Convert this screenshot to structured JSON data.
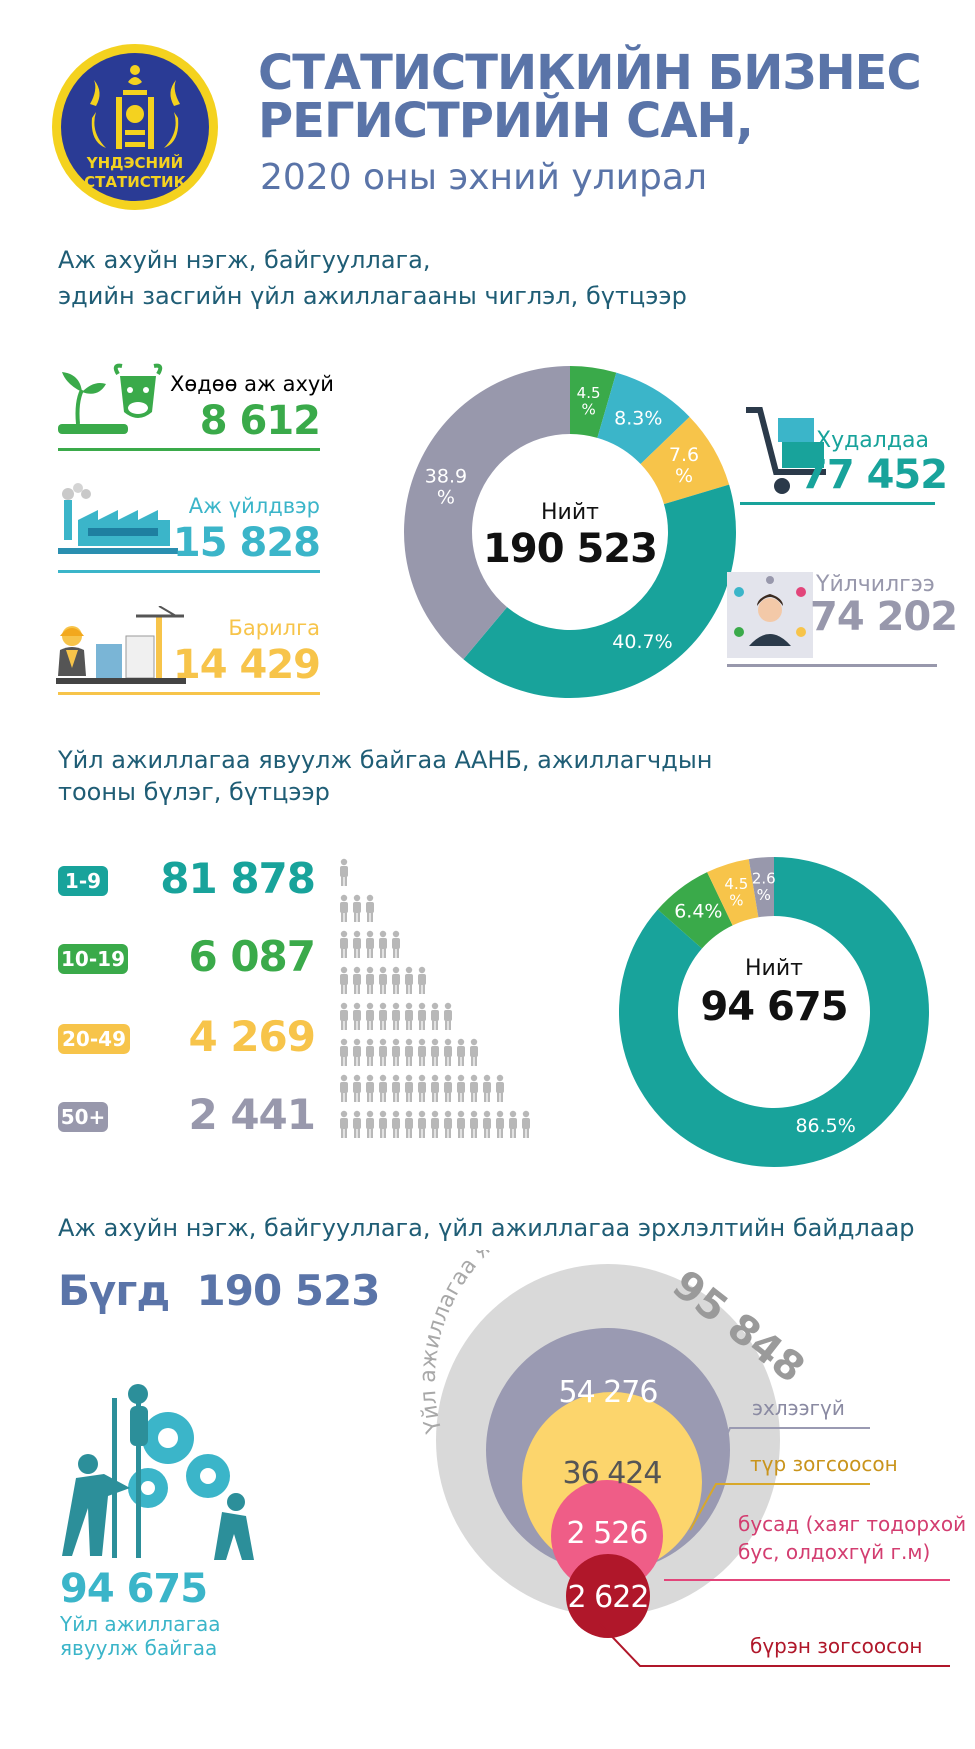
{
  "header": {
    "logo_text": "ҮНДЭСНИЙ СТАТИСТИК",
    "title_line1": "СТАТИСТИКИЙН БИЗНЕС",
    "title_line2": "РЕГИСТРИЙН САН,",
    "title_line3": "2020 оны эхний улирал"
  },
  "section1": {
    "heading_line1": "Аж ахуйн нэгж, байгууллага,",
    "heading_line2": "эдийн засгийн үйл ажиллагааны чиглэл, бүтцээр",
    "sectors": [
      {
        "label": "Хөдөө аж ахуй",
        "value": "8 612",
        "color": "#3aaa4a",
        "icon": "agriculture-icon"
      },
      {
        "label": "Аж үйлдвэр",
        "value": "15 828",
        "color": "#3bb5c9",
        "icon": "factory-icon"
      },
      {
        "label": "Барилга",
        "value": "14 429",
        "color": "#f7c44a",
        "icon": "construction-icon"
      },
      {
        "label": "Худалдаа",
        "value": "77 452",
        "color": "#18a39b",
        "icon": "trade-cart-icon"
      },
      {
        "label": "Үйлчилгээ",
        "value": "74 202",
        "color": "#9898ac",
        "icon": "service-operator-icon"
      }
    ],
    "donut_center_label": "Нийт",
    "donut_center_value": "190 523"
  },
  "section2": {
    "heading_line1": "Үйл ажиллагаа явуулж байгаа ААНБ, ажиллагчдын",
    "heading_line2": "тооны бүлэг, бүтцээр",
    "groups": [
      {
        "range": "1-9",
        "value": "81 878",
        "color": "#18a39b",
        "people": 1
      },
      {
        "range": "10-19",
        "value": "6 087",
        "color": "#3aaa4a",
        "people": 3
      },
      {
        "range": "20-49",
        "value": "4 269",
        "color": "#f7c44a",
        "people": 7
      },
      {
        "range": "50+",
        "value": "2 441",
        "color": "#9898ac",
        "people": 15
      }
    ],
    "donut_center_label": "Нийт",
    "donut_center_value": "94 675"
  },
  "section3": {
    "heading": "Аж ахуйн нэгж, байгууллага, үйл ажиллагаа эрхлэлтийн байдлаар",
    "total_label": "Бүгд",
    "total_value": "190 523",
    "active_value": "94 675",
    "active_label_line1": "Үйл ажиллагаа",
    "active_label_line2": "явуулж байгаа",
    "inactive_arc_label": "Үйл ажиллагаа явуулаагүй",
    "inactive_value": "95 848",
    "rings": [
      {
        "value": "54 276",
        "label": "эхлээгүй",
        "color": "#9a9ab2",
        "line": "#9a9ab2"
      },
      {
        "value": "36 424",
        "label": "түр зогсоосон",
        "color": "#fcd56c",
        "line": "#d8a82a"
      },
      {
        "value": "2 526",
        "label_line1": "бусад (хаяг тодорхой",
        "label_line2": "бус, олдохгүй г.м)",
        "color": "#ef5d87",
        "line": "#e2457a"
      },
      {
        "value": "2 622",
        "label": "бүрэн зогсоосон",
        "color": "#b0172a",
        "line": "#b0172a"
      }
    ]
  },
  "chart_data": [
    {
      "type": "pie",
      "title": "",
      "categories": [
        "Хөдөө аж ахуй",
        "Аж үйлдвэр",
        "Барилга",
        "Худалдаа",
        "Үйлчилгээ"
      ],
      "values": [
        4.5,
        8.3,
        7.6,
        40.7,
        38.9
      ],
      "labels": [
        "4.5 %",
        "8.3%",
        "7.6 %",
        "40.7%",
        "38.9 %"
      ],
      "colors": [
        "#3aaa4a",
        "#3bb5c9",
        "#f7c44a",
        "#18a39b",
        "#9898ac"
      ]
    },
    {
      "type": "pie",
      "title": "",
      "categories": [
        "1-9",
        "10-19",
        "20-49",
        "50+"
      ],
      "values": [
        86.5,
        6.4,
        4.5,
        2.6
      ],
      "labels": [
        "86.5%",
        "6.4%",
        "4.5 %",
        "2.6 %"
      ],
      "colors": [
        "#18a39b",
        "#3aaa4a",
        "#f7c44a",
        "#9898ac"
      ]
    }
  ]
}
